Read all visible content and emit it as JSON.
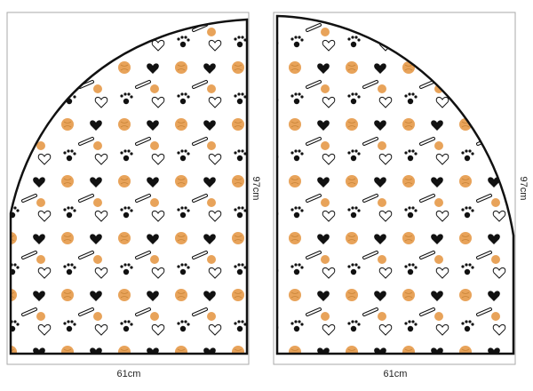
{
  "panels": [
    {
      "height_label": "97cm",
      "width_label": "61cm"
    },
    {
      "height_label": "97cm",
      "width_label": "61cm"
    }
  ]
}
